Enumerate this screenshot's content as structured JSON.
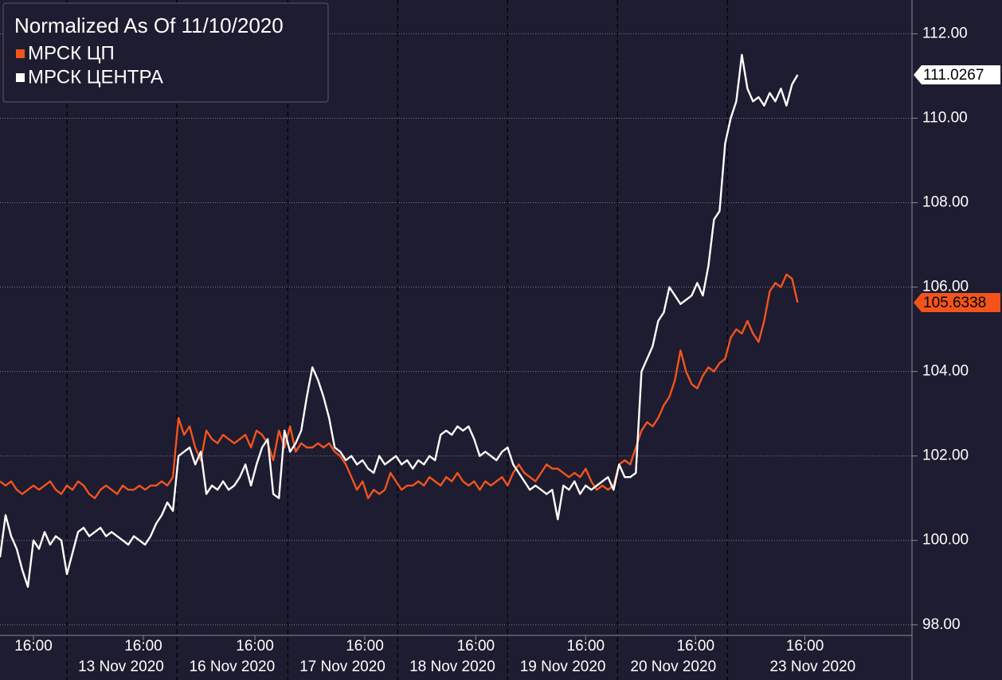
{
  "chart_data": {
    "type": "line",
    "legend_title": "Normalized As Of 11/10/2020",
    "legend": "top-left",
    "grid": true,
    "ylim": [
      97.75,
      112.8
    ],
    "yticks": [
      {
        "value": 98,
        "label": "98.00"
      },
      {
        "value": 100,
        "label": "100.00"
      },
      {
        "value": 102,
        "label": "102.00"
      },
      {
        "value": 104,
        "label": "104.00"
      },
      {
        "value": 106,
        "label": "106.00"
      },
      {
        "value": 108,
        "label": "108.00"
      },
      {
        "value": 110,
        "label": "110.00"
      },
      {
        "value": 112,
        "label": "112.00"
      }
    ],
    "xlim": [
      0,
      163.5
    ],
    "xticks": [
      {
        "value": 6,
        "label": "16:00"
      },
      {
        "value": 25.7,
        "label": "16:00"
      },
      {
        "value": 45.7,
        "label": "16:00"
      },
      {
        "value": 65.4,
        "label": "16:00"
      },
      {
        "value": 85.3,
        "label": "16:00"
      },
      {
        "value": 105,
        "label": "16:00"
      },
      {
        "value": 124.7,
        "label": "16:00"
      },
      {
        "value": 144.3,
        "label": "16:00"
      }
    ],
    "day_breaks": [
      12,
      31.7,
      51.6,
      71.3,
      91,
      110.7,
      130.4
    ],
    "date_labels": [
      {
        "value": 21.7,
        "label": "13 Nov 2020"
      },
      {
        "value": 41.6,
        "label": "16 Nov 2020"
      },
      {
        "value": 61.4,
        "label": "17 Nov 2020"
      },
      {
        "value": 81.1,
        "label": "18 Nov 2020"
      },
      {
        "value": 100.9,
        "label": "19 Nov 2020"
      },
      {
        "value": 120.7,
        "label": "20 Nov 2020"
      },
      {
        "value": 145.7,
        "label": "23 Nov 2020"
      }
    ],
    "series": [
      {
        "name": "МРСК ЦП",
        "color": "#f4541c",
        "values": [
          101.4,
          101.3,
          101.4,
          101.2,
          101.1,
          101.2,
          101.3,
          101.2,
          101.3,
          101.4,
          101.2,
          101.1,
          101.3,
          101.2,
          101.4,
          101.3,
          101.1,
          101.0,
          101.2,
          101.3,
          101.2,
          101.1,
          101.3,
          101.2,
          101.2,
          101.3,
          101.2,
          101.3,
          101.3,
          101.4,
          101.3,
          101.5,
          102.9,
          102.5,
          102.7,
          102.2,
          101.9,
          102.6,
          102.4,
          102.3,
          102.5,
          102.4,
          102.3,
          102.4,
          102.5,
          102.2,
          102.6,
          102.5,
          102.3,
          101.9,
          102.6,
          102.2,
          102.7,
          102.1,
          102.3,
          102.2,
          102.2,
          102.3,
          102.2,
          102.3,
          102.1,
          102.0,
          101.8,
          101.5,
          101.2,
          101.4,
          101.0,
          101.2,
          101.1,
          101.2,
          101.6,
          101.4,
          101.2,
          101.3,
          101.3,
          101.4,
          101.3,
          101.5,
          101.4,
          101.3,
          101.5,
          101.4,
          101.6,
          101.4,
          101.3,
          101.4,
          101.2,
          101.4,
          101.3,
          101.4,
          101.5,
          101.3,
          101.6,
          101.8,
          101.6,
          101.5,
          101.4,
          101.6,
          101.8,
          101.7,
          101.7,
          101.6,
          101.5,
          101.6,
          101.5,
          101.7,
          101.4,
          101.2,
          101.3,
          101.2,
          101.3,
          101.8,
          101.9,
          101.8,
          102.2,
          102.6,
          102.8,
          102.7,
          102.9,
          103.2,
          103.4,
          103.8,
          104.5,
          104.0,
          103.7,
          103.6,
          103.9,
          104.1,
          104.0,
          104.2,
          104.3,
          104.8,
          105.0,
          104.9,
          105.2,
          104.9,
          104.7,
          105.2,
          105.9,
          106.1,
          106.0,
          106.3,
          106.2,
          105.6338
        ]
      },
      {
        "name": "МРСК ЦЕНТРА",
        "color": "#ffffff",
        "values": [
          99.6,
          100.6,
          100.1,
          99.8,
          99.3,
          98.9,
          100.0,
          99.8,
          100.2,
          99.9,
          100.1,
          100.0,
          99.2,
          99.7,
          100.2,
          100.3,
          100.1,
          100.2,
          100.3,
          100.1,
          100.2,
          100.1,
          100.0,
          99.9,
          100.1,
          100.0,
          99.9,
          100.1,
          100.4,
          100.6,
          100.9,
          100.7,
          102.0,
          102.1,
          102.2,
          101.8,
          102.1,
          101.1,
          101.3,
          101.2,
          101.4,
          101.2,
          101.3,
          101.5,
          101.8,
          101.3,
          101.8,
          102.2,
          102.4,
          101.1,
          101.0,
          102.6,
          102.1,
          102.3,
          102.6,
          103.4,
          104.1,
          103.8,
          103.4,
          102.9,
          102.2,
          102.1,
          101.9,
          102.0,
          101.8,
          101.9,
          101.7,
          101.6,
          102.0,
          101.8,
          101.9,
          102.0,
          101.8,
          101.9,
          101.7,
          101.9,
          101.8,
          102.0,
          101.9,
          102.5,
          102.6,
          102.5,
          102.7,
          102.6,
          102.7,
          102.4,
          102.0,
          102.1,
          102.0,
          101.9,
          102.1,
          102.2,
          101.8,
          101.6,
          101.4,
          101.2,
          101.3,
          101.2,
          101.1,
          101.2,
          100.5,
          101.3,
          101.2,
          101.4,
          101.1,
          101.3,
          101.2,
          101.3,
          101.4,
          101.5,
          101.2,
          101.8,
          101.5,
          101.5,
          101.6,
          104.0,
          104.3,
          104.6,
          105.2,
          105.4,
          106.0,
          105.8,
          105.6,
          105.7,
          105.8,
          106.1,
          105.8,
          106.5,
          107.6,
          107.8,
          109.4,
          110.0,
          110.4,
          111.5,
          110.7,
          110.4,
          110.5,
          110.3,
          110.6,
          110.4,
          110.7,
          110.3,
          110.8,
          111.0267
        ]
      }
    ]
  }
}
